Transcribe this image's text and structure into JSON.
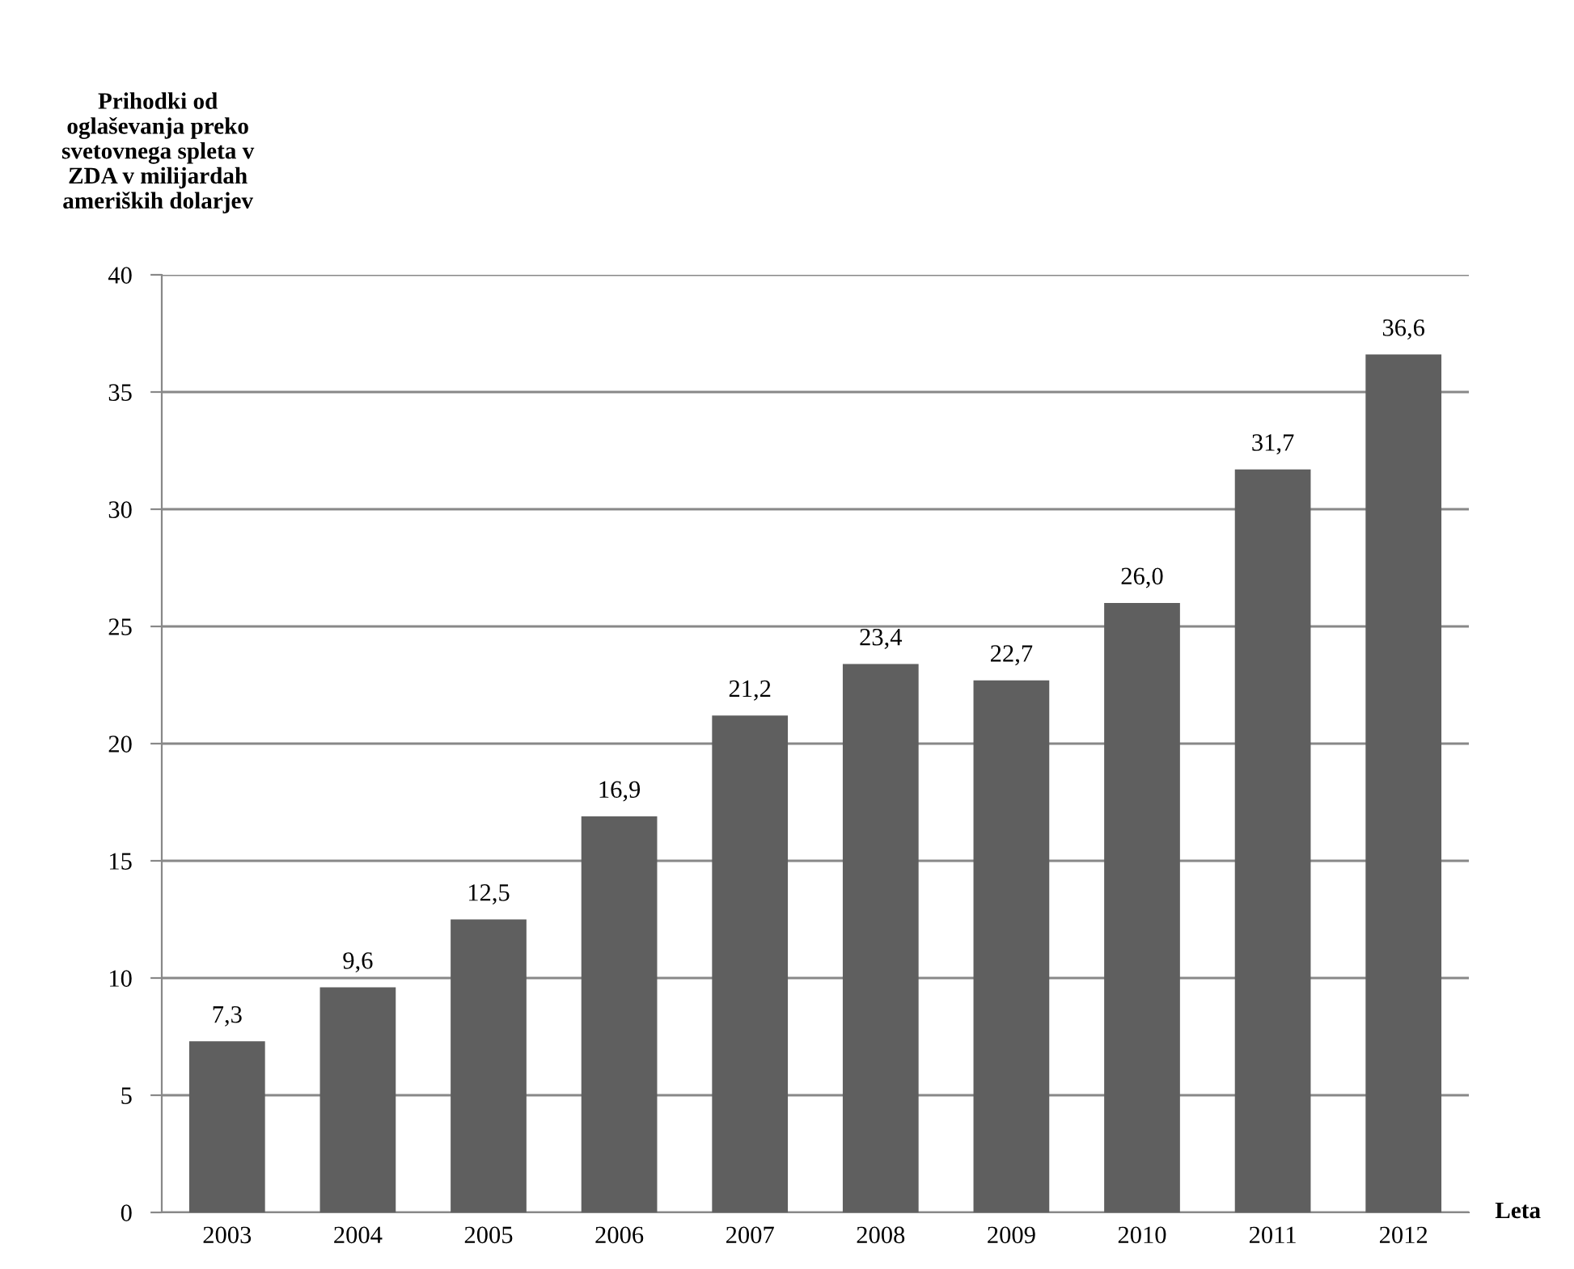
{
  "chart_data": {
    "type": "bar",
    "ylabel": "Prihodki od\noglaševanja preko\nsvetovnega spleta v\nZDA v milijardah\nameriških dolarjev",
    "xlabel": "Leta",
    "categories": [
      "2003",
      "2004",
      "2005",
      "2006",
      "2007",
      "2008",
      "2009",
      "2010",
      "2011",
      "2012"
    ],
    "values": [
      7.3,
      9.6,
      12.5,
      16.9,
      21.2,
      23.4,
      22.7,
      26.0,
      31.7,
      36.6
    ],
    "value_labels": [
      "7,3",
      "9,6",
      "12,5",
      "16,9",
      "21,2",
      "23,4",
      "22,7",
      "26,0",
      "31,7",
      "36,6"
    ],
    "color": "#5f5f5f",
    "ylim": [
      0,
      40
    ],
    "yticks": [
      0,
      5,
      10,
      15,
      20,
      25,
      30,
      35,
      40
    ],
    "grid": "y",
    "legend": false
  }
}
